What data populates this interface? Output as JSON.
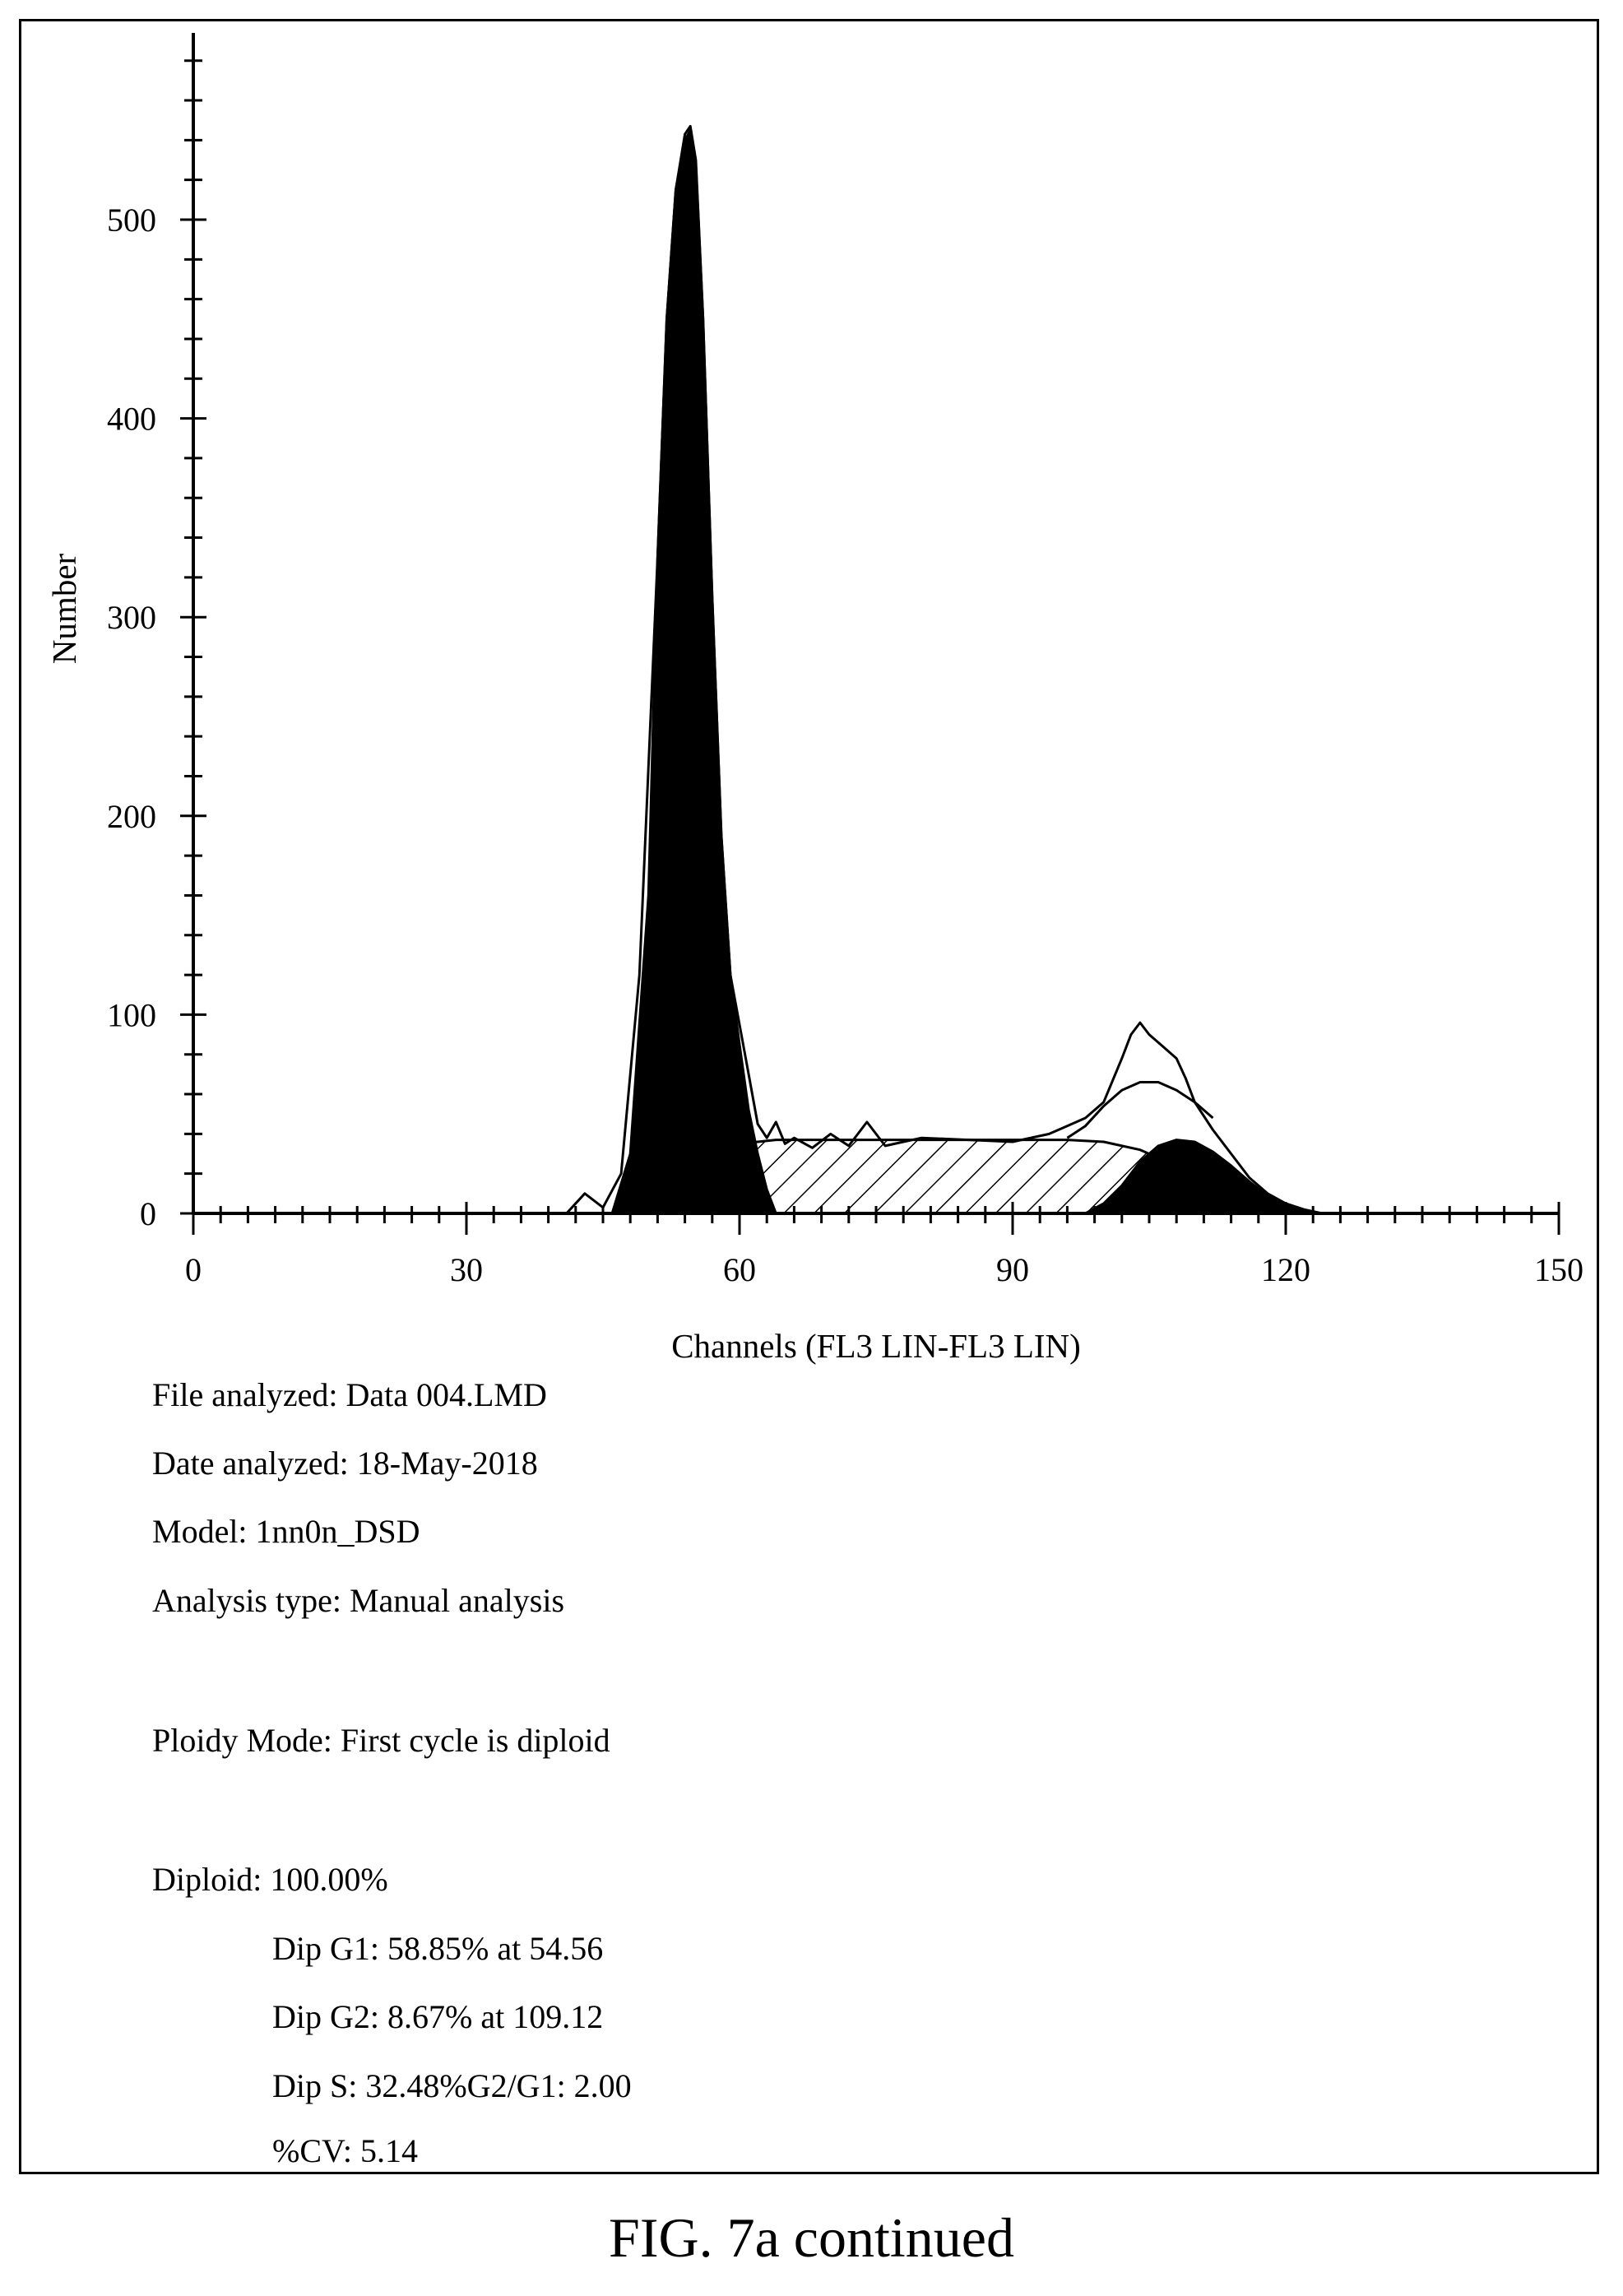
{
  "chart_data": {
    "type": "area",
    "xlabel": "Channels (FL3 LIN-FL3 LIN)",
    "ylabel": "Number",
    "xlim": [
      0,
      150
    ],
    "ylim": [
      0,
      550
    ],
    "x_ticks": [
      "0",
      "30",
      "60",
      "90",
      "120",
      "150"
    ],
    "y_ticks": [
      "0",
      "100",
      "200",
      "300",
      "400",
      "500"
    ],
    "grid": false,
    "legend": "none",
    "series": [
      {
        "style": "outline",
        "x": [
          0,
          41,
          43,
          45,
          47,
          49,
          51,
          52,
          53,
          54,
          54.6,
          55.2,
          56,
          57,
          58,
          59,
          60,
          61,
          62,
          63,
          64,
          65,
          66,
          68,
          70,
          72,
          74,
          76,
          80,
          90,
          94,
          96,
          98,
          100,
          102,
          103,
          104,
          105,
          106,
          107,
          108,
          109,
          110,
          112,
          114,
          116,
          118,
          120,
          122,
          124,
          150
        ],
        "y": [
          0,
          0,
          10,
          3,
          20,
          120,
          330,
          450,
          515,
          543,
          547,
          530,
          450,
          310,
          190,
          120,
          95,
          70,
          45,
          38,
          46,
          35,
          38,
          33,
          40,
          34,
          46,
          34,
          38,
          36,
          40,
          44,
          48,
          56,
          78,
          90,
          96,
          90,
          86,
          82,
          78,
          68,
          56,
          42,
          30,
          18,
          10,
          5,
          2,
          0,
          0
        ]
      },
      {
        "style": "solid",
        "x": [
          46,
          48,
          50,
          51,
          52,
          53,
          54,
          54.6,
          55.2,
          56,
          57,
          58,
          59,
          60,
          61,
          62,
          63,
          64
        ],
        "y": [
          0,
          30,
          160,
          330,
          450,
          515,
          540,
          545,
          528,
          450,
          310,
          190,
          120,
          85,
          52,
          30,
          12,
          0
        ]
      },
      {
        "style": "hatched",
        "x": [
          48,
          52,
          56,
          60,
          64,
          70,
          80,
          90,
          96,
          100,
          104,
          108,
          112,
          116,
          118,
          120
        ],
        "y": [
          0,
          15,
          28,
          35,
          37,
          37,
          37,
          37,
          37,
          36,
          32,
          24,
          14,
          5,
          2,
          0
        ]
      },
      {
        "style": "solid",
        "x": [
          98,
          100,
          102,
          104,
          106,
          108,
          110,
          112,
          114,
          116,
          118,
          120,
          122,
          124
        ],
        "y": [
          0,
          5,
          14,
          26,
          34,
          37,
          36,
          31,
          24,
          16,
          9,
          4,
          1,
          0
        ]
      },
      {
        "style": "outline",
        "x": [
          96,
          98,
          100,
          102,
          104,
          106,
          108,
          110,
          112
        ],
        "y": [
          38,
          44,
          54,
          62,
          66,
          66,
          62,
          56,
          48
        ]
      }
    ]
  },
  "info": {
    "file": "File analyzed: Data 004.LMD",
    "date": "Date analyzed: 18-May-2018",
    "model": "Model: 1nn0n_DSD",
    "analysis": "Analysis type: Manual analysis",
    "ploidy": "Ploidy Mode: First cycle is diploid",
    "diploid": "Diploid: 100.00%",
    "g1": "Dip G1: 58.85% at 54.56",
    "g2": "Dip G2: 8.67% at 109.12",
    "s": "Dip S: 32.48%G2/G1: 2.00",
    "cv": "%CV: 5.14"
  },
  "caption": "FIG. 7a continued"
}
